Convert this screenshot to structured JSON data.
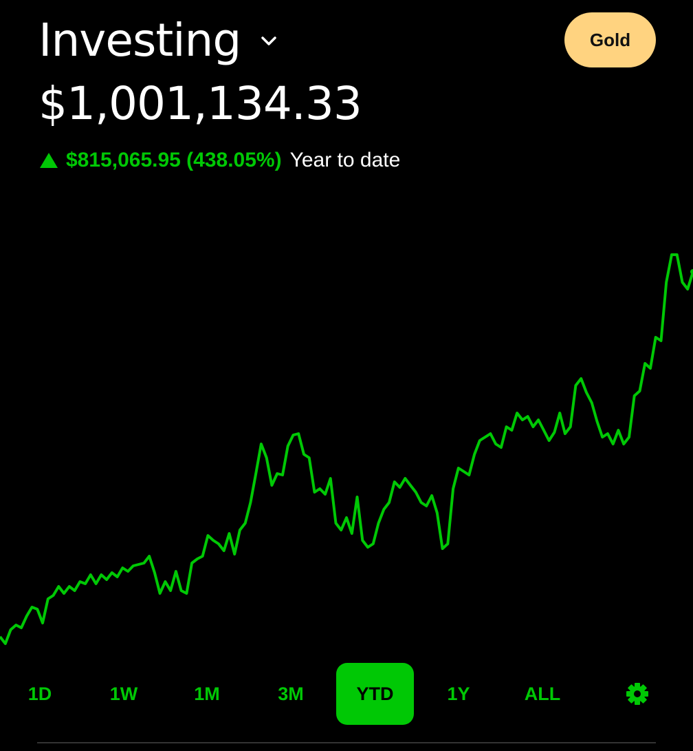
{
  "header": {
    "title": "Investing",
    "gold_label": "Gold"
  },
  "portfolio": {
    "value": "$1,001,134.33",
    "change": "$815,065.95 (438.05%)",
    "period": "Year to date",
    "direction": "up"
  },
  "colors": {
    "accent": "#00C805",
    "gold": "#FFD380",
    "background": "#000000"
  },
  "ranges": [
    {
      "label": "1D",
      "active": false
    },
    {
      "label": "1W",
      "active": false
    },
    {
      "label": "1M",
      "active": false
    },
    {
      "label": "3M",
      "active": false
    },
    {
      "label": "YTD",
      "active": true
    },
    {
      "label": "1Y",
      "active": false
    },
    {
      "label": "ALL",
      "active": false
    }
  ],
  "settings_icon": "gear-icon",
  "chart_data": {
    "type": "line",
    "title": "",
    "xlabel": "",
    "ylabel": "",
    "grid": false,
    "color": "#00C805",
    "values": [
      193700,
      178500,
      209000,
      219600,
      213500,
      239400,
      259200,
      254600,
      224100,
      277500,
      285100,
      304900,
      289600,
      304900,
      295700,
      315500,
      311000,
      330800,
      311000,
      330800,
      320100,
      335300,
      326200,
      346000,
      338400,
      350600,
      353600,
      356600,
      371900,
      335300,
      289600,
      315500,
      295700,
      338400,
      295700,
      289600,
      356600,
      365800,
      371900,
      417600,
      406900,
      399300,
      384100,
      422100,
      376500,
      429800,
      445000,
      490700,
      554600,
      620100,
      589700,
      528700,
      554600,
      551600,
      615600,
      639900,
      643000,
      597300,
      589700,
      513500,
      521100,
      508900,
      544000,
      445000,
      429800,
      457200,
      422100,
      502900,
      406900,
      391700,
      399300,
      445000,
      475400,
      490700,
      536400,
      524200,
      544000,
      528700,
      513500,
      490700,
      483000,
      505900,
      467800,
      388600,
      399300,
      521100,
      566800,
      559200,
      551600,
      597300,
      627700,
      635400,
      643000,
      620100,
      612500,
      658200,
      650600,
      688700,
      673400,
      681100,
      658200,
      673400,
      650600,
      627700,
      646000,
      688700,
      643000,
      658200,
      749600,
      764800,
      734400,
      711500,
      670400,
      635400,
      643000,
      620100,
      650600,
      620100,
      635400,
      726700,
      737400,
      798300,
      787700,
      856200,
      848600,
      978000,
      1039000,
      1039000,
      978000,
      962800,
      1001134
    ]
  }
}
